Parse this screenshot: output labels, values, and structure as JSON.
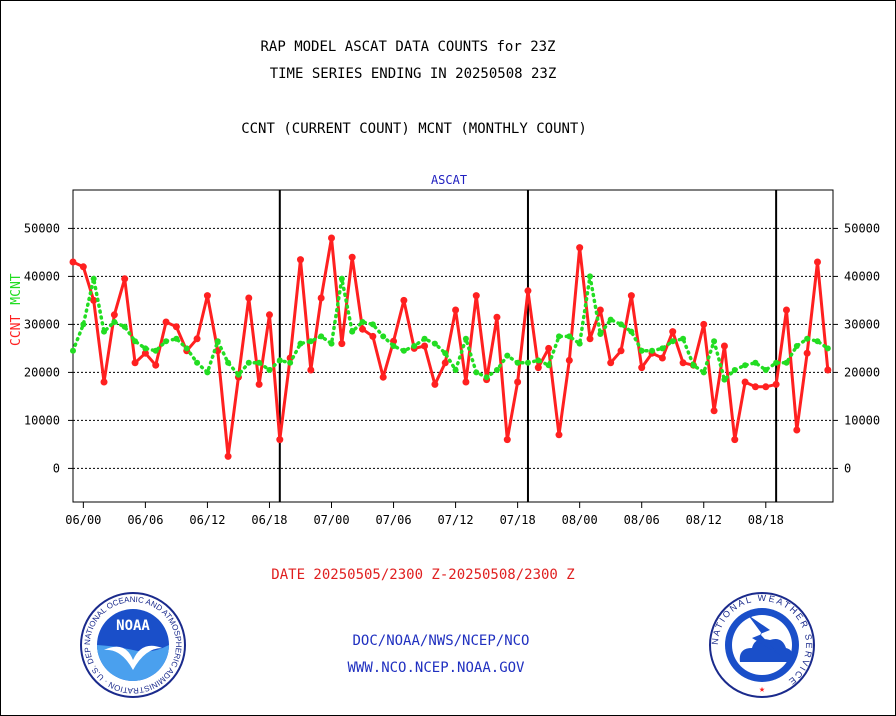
{
  "header": {
    "title_line1": "RAP MODEL ASCAT DATA COUNTS for 23Z",
    "title_line2": "TIME SERIES ENDING IN 20250508 23Z",
    "subtitle": "CCNT (CURRENT COUNT) MCNT (MONTHLY COUNT)"
  },
  "footer": {
    "date_range": "DATE 20250505/2300 Z-20250508/2300 Z",
    "org_line": "DOC/NOAA/NWS/NCEP/NCO",
    "url_line": "WWW.NCO.NCEP.NOAA.GOV"
  },
  "logos": {
    "noaa_text": "NOAA",
    "noaa_ring_text": "NATIONAL OCEANIC AND ATMOSPHERIC ADMINISTRATION · U.S. DEPARTMENT OF COMMERCE ·",
    "nws_ring_text": "NATIONAL WEATHER SERVICE"
  },
  "colors": {
    "ccnt": "#ff2020",
    "mcnt": "#22dd22",
    "panel_title": "#2020c0",
    "footer_red": "#e02020",
    "footer_blue": "#2030c0"
  },
  "chart_data": {
    "type": "line",
    "panel_title": "ASCAT",
    "ylabel_ccnt": "CCNT",
    "ylabel_mcnt": "MCNT",
    "ylim": [
      -7000,
      58000
    ],
    "yticks": [
      0,
      10000,
      20000,
      30000,
      40000,
      50000
    ],
    "ytick_labels": [
      "0",
      "10000",
      "20000",
      "30000",
      "40000",
      "50000"
    ],
    "x_unit": "hours since 06/00",
    "xlim": [
      -1,
      72.5
    ],
    "xticks": [
      0,
      6,
      12,
      18,
      24,
      30,
      36,
      42,
      48,
      54,
      60,
      66
    ],
    "xtick_labels": [
      "06/00",
      "06/06",
      "06/12",
      "06/18",
      "07/00",
      "07/06",
      "07/12",
      "07/18",
      "08/00",
      "08/06",
      "08/12",
      "08/18"
    ],
    "day_boundaries": [
      19,
      43,
      67
    ],
    "grid": "horizontal",
    "series": [
      {
        "name": "CCNT",
        "x_start": -1,
        "values": [
          43000,
          42000,
          35000,
          18000,
          32000,
          39500,
          22000,
          24000,
          21500,
          30500,
          29500,
          24500,
          27000,
          36000,
          24500,
          2500,
          19000,
          35500,
          17500,
          32000,
          6000,
          23000,
          43500,
          20500,
          35500,
          48000,
          26000,
          44000,
          29000,
          27500,
          19000,
          26500,
          35000,
          25000,
          25500,
          17500,
          22000,
          33000,
          18000,
          36000,
          18500,
          31500,
          6000,
          18000,
          37000,
          21000,
          25000,
          7000,
          22500,
          46000,
          27000,
          33000,
          22000,
          24500,
          36000,
          21000,
          24000,
          23000,
          28500,
          22000,
          21500,
          30000,
          12000,
          25500,
          6000,
          18000,
          17000,
          17000,
          17500,
          33000,
          8000,
          24000,
          43000,
          20500
        ]
      },
      {
        "name": "MCNT",
        "x_start": -1,
        "values": [
          24500,
          30000,
          39500,
          28500,
          30500,
          29500,
          26500,
          25000,
          24500,
          26500,
          27000,
          25000,
          22000,
          20000,
          26500,
          22000,
          19500,
          22000,
          22000,
          20500,
          22500,
          22000,
          26000,
          26500,
          27500,
          26000,
          39500,
          28500,
          30500,
          30000,
          27500,
          25500,
          24500,
          25500,
          27000,
          26000,
          24000,
          20500,
          27000,
          20000,
          19000,
          20500,
          23500,
          22000,
          22000,
          22500,
          21500,
          27500,
          27500,
          26000,
          40000,
          28000,
          31000,
          30000,
          28500,
          24500,
          24500,
          25000,
          26500,
          27000,
          21500,
          20000,
          26500,
          18500,
          20500,
          21500,
          22000,
          20500,
          22000,
          22000,
          25500,
          27000,
          26500,
          25000
        ]
      }
    ]
  }
}
